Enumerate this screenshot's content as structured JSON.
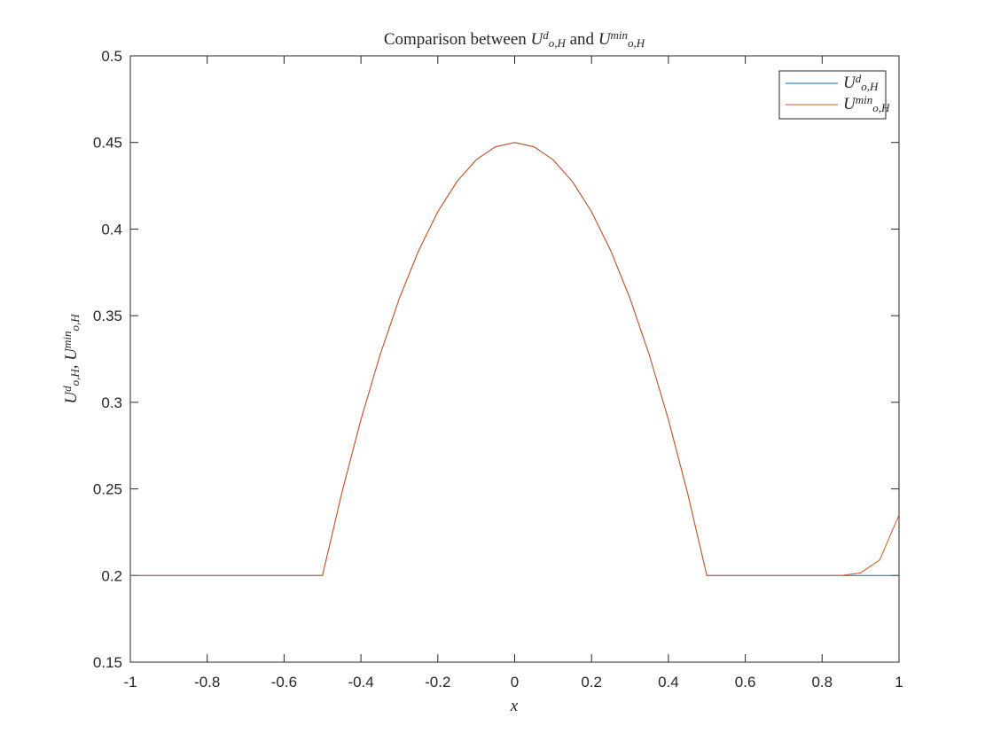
{
  "chart_data": {
    "type": "line",
    "title": "Comparison between U^d_{o,H} and U^{min}_{o,H}",
    "xlabel": "x",
    "ylabel": "U^d_{o,H}, U^{min}_{o,H}",
    "x": [
      -1,
      -0.95,
      -0.9,
      -0.85,
      -0.8,
      -0.75,
      -0.7,
      -0.65,
      -0.6,
      -0.55,
      -0.5,
      -0.45,
      -0.4,
      -0.35,
      -0.3,
      -0.25,
      -0.2,
      -0.15,
      -0.1,
      -0.05,
      0,
      0.05,
      0.1,
      0.15,
      0.2,
      0.25,
      0.3,
      0.35,
      0.4,
      0.45,
      0.5,
      0.55,
      0.6,
      0.65,
      0.7,
      0.75,
      0.8,
      0.85,
      0.9,
      0.95,
      1
    ],
    "series": [
      {
        "name": "U^d_{o,H}",
        "color": "#0072BD",
        "values": [
          0.2,
          0.2,
          0.2,
          0.2,
          0.2,
          0.2,
          0.2,
          0.2,
          0.2,
          0.2,
          0.2,
          0.2475,
          0.29,
          0.3275,
          0.36,
          0.3875,
          0.41,
          0.4275,
          0.44,
          0.4475,
          0.45,
          0.4475,
          0.44,
          0.4275,
          0.41,
          0.3875,
          0.36,
          0.3275,
          0.29,
          0.2475,
          0.2,
          0.2,
          0.2,
          0.2,
          0.2,
          0.2,
          0.2,
          0.2,
          0.2,
          0.2,
          0.2
        ]
      },
      {
        "name": "U^{min}_{o,H}",
        "color": "#D95319",
        "values": [
          0.2,
          0.2,
          0.2,
          0.2,
          0.2,
          0.2,
          0.2,
          0.2,
          0.2,
          0.2,
          0.2,
          0.2475,
          0.29,
          0.3275,
          0.36,
          0.3875,
          0.41,
          0.4275,
          0.44,
          0.4475,
          0.45,
          0.4475,
          0.44,
          0.4275,
          0.41,
          0.3875,
          0.36,
          0.3275,
          0.29,
          0.2475,
          0.2,
          0.2,
          0.2,
          0.2,
          0.2,
          0.2,
          0.2,
          0.2,
          0.2015,
          0.209,
          0.235
        ]
      }
    ],
    "xlim": [
      -1,
      1
    ],
    "xticks": [
      -1,
      -0.8,
      -0.6,
      -0.4,
      -0.2,
      0,
      0.2,
      0.4,
      0.6,
      0.8,
      1
    ],
    "ylim": [
      0.15,
      0.5
    ],
    "yticks": [
      0.15,
      0.2,
      0.25,
      0.3,
      0.35,
      0.4,
      0.45,
      0.5
    ],
    "grid": false,
    "legend": "northeast"
  }
}
